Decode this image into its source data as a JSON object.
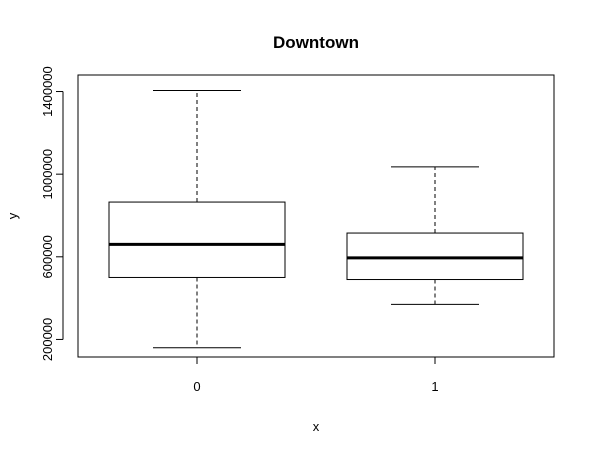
{
  "chart_data": {
    "type": "boxplot",
    "title": "Downtown",
    "xlabel": "x",
    "ylabel": "y",
    "categories": [
      "0",
      "1"
    ],
    "boxes": [
      {
        "category": "0",
        "whisker_low": 160000,
        "q1": 500000,
        "median": 660000,
        "q3": 865000,
        "whisker_high": 1405000
      },
      {
        "category": "1",
        "whisker_low": 370000,
        "q1": 490000,
        "median": 595000,
        "q3": 715000,
        "whisker_high": 1035000
      }
    ],
    "y_ticks": [
      200000,
      600000,
      1000000,
      1400000
    ],
    "y_tick_labels": [
      "200000",
      "600000",
      "1000000",
      "1400000"
    ],
    "ylim": [
      115000,
      1480000
    ],
    "grid": false,
    "legend": "none"
  }
}
